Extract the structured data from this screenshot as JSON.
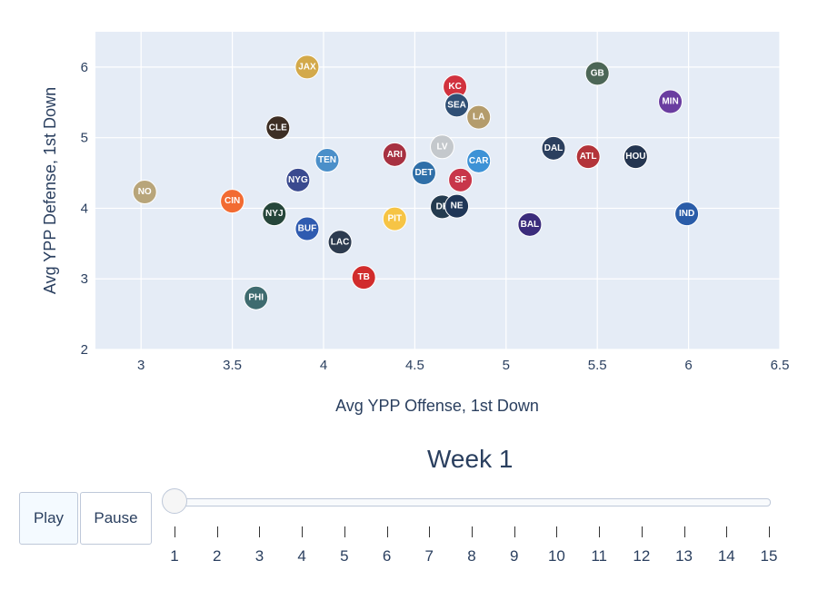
{
  "chart_data": {
    "type": "scatter",
    "xlabel": "Avg YPP Offense, 1st Down",
    "ylabel": "Avg YPP Defense, 1st Down",
    "xlim": [
      2.75,
      6.5
    ],
    "ylim": [
      2,
      6.5
    ],
    "xticks": [
      "3",
      "3.5",
      "4",
      "4.5",
      "5",
      "5.5",
      "6",
      "6.5"
    ],
    "yticks": [
      "2",
      "3",
      "4",
      "5",
      "6"
    ],
    "grid": true,
    "points": [
      {
        "label": "NO",
        "x": 3.02,
        "y": 4.23,
        "color": "#b8a57a"
      },
      {
        "label": "CIN",
        "x": 3.5,
        "y": 4.1,
        "color": "#f26b32"
      },
      {
        "label": "JAX",
        "x": 3.91,
        "y": 6.0,
        "color": "#d3a94a"
      },
      {
        "label": "CLE",
        "x": 3.75,
        "y": 5.14,
        "color": "#3d2e24"
      },
      {
        "label": "NYG",
        "x": 3.86,
        "y": 4.4,
        "color": "#3a4a8f"
      },
      {
        "label": "NYJ",
        "x": 3.73,
        "y": 3.92,
        "color": "#26463a"
      },
      {
        "label": "BUF",
        "x": 3.91,
        "y": 3.71,
        "color": "#2f5bb0"
      },
      {
        "label": "LAC",
        "x": 4.09,
        "y": 3.52,
        "color": "#2d3b4f"
      },
      {
        "label": "PHI",
        "x": 3.63,
        "y": 2.73,
        "color": "#3e6b6f"
      },
      {
        "label": "TB",
        "x": 4.22,
        "y": 3.02,
        "color": "#d12c2c"
      },
      {
        "label": "TEN",
        "x": 4.02,
        "y": 4.68,
        "color": "#4b8fc9"
      },
      {
        "label": "ARI",
        "x": 4.39,
        "y": 4.76,
        "color": "#a73141"
      },
      {
        "label": "PIT",
        "x": 4.39,
        "y": 3.85,
        "color": "#f6c445"
      },
      {
        "label": "LV",
        "x": 4.65,
        "y": 4.87,
        "color": "#c4c8cc"
      },
      {
        "label": "DET",
        "x": 4.55,
        "y": 4.5,
        "color": "#2f6fa8"
      },
      {
        "label": "DE",
        "x": 4.65,
        "y": 4.02,
        "color": "#243b4f"
      },
      {
        "label": "NE",
        "x": 4.73,
        "y": 4.03,
        "color": "#1f3657"
      },
      {
        "label": "SF",
        "x": 4.75,
        "y": 4.4,
        "color": "#c8364a"
      },
      {
        "label": "KC",
        "x": 4.72,
        "y": 5.72,
        "color": "#d1323e"
      },
      {
        "label": "SEA",
        "x": 4.73,
        "y": 5.46,
        "color": "#2f4f75"
      },
      {
        "label": "LA",
        "x": 4.85,
        "y": 5.29,
        "color": "#b49c6c"
      },
      {
        "label": "CAR",
        "x": 4.85,
        "y": 4.67,
        "color": "#3d92d6"
      },
      {
        "label": "BAL",
        "x": 5.13,
        "y": 3.77,
        "color": "#3b2c7c"
      },
      {
        "label": "DAL",
        "x": 5.26,
        "y": 4.85,
        "color": "#2b3f5e"
      },
      {
        "label": "ATL",
        "x": 5.45,
        "y": 4.73,
        "color": "#b3343a"
      },
      {
        "label": "GB",
        "x": 5.5,
        "y": 5.91,
        "color": "#4c6656"
      },
      {
        "label": "HOU",
        "x": 5.71,
        "y": 4.73,
        "color": "#243550"
      },
      {
        "label": "MIN",
        "x": 5.9,
        "y": 5.51,
        "color": "#6a3da0"
      },
      {
        "label": "IND",
        "x": 5.99,
        "y": 3.92,
        "color": "#2a5ca8"
      }
    ]
  },
  "animation": {
    "title": "Week 1",
    "play_label": "Play",
    "pause_label": "Pause",
    "steps": [
      "1",
      "2",
      "3",
      "4",
      "5",
      "6",
      "7",
      "8",
      "9",
      "10",
      "11",
      "12",
      "13",
      "14",
      "15"
    ],
    "current_step": 1
  }
}
